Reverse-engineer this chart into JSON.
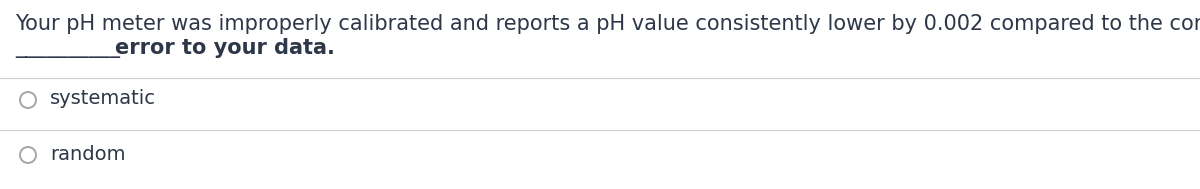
{
  "question_line1": "Your pH meter was improperly calibrated and reports a pH value consistently lower by 0.002 compared to the correct value. This discrepancy introduces",
  "question_line2": "error to your data.",
  "blank": "__________",
  "options": [
    "systematic",
    "random"
  ],
  "bg_color": "#ffffff",
  "text_color": "#2d3748",
  "line_color": "#d0d0d0",
  "font_size": 15,
  "option_font_size": 14,
  "fig_width": 12.0,
  "fig_height": 1.89
}
